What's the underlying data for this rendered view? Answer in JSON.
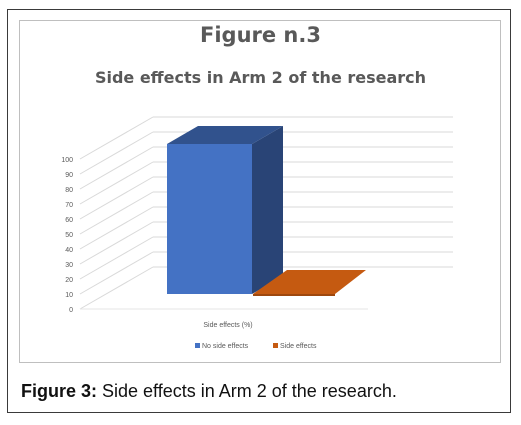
{
  "chart_data": {
    "type": "bar",
    "title": "Figure n.3",
    "subtitle": "Side effects in Arm 2 of the research",
    "categories": [
      "Side effects (%)"
    ],
    "series": [
      {
        "name": "No side effects",
        "values": [
          100
        ],
        "color": "#4472c4"
      },
      {
        "name": "Side effects",
        "values": [
          0
        ],
        "color": "#c55a11"
      }
    ],
    "xlabel": "Side effects (%)",
    "ylabel": "",
    "ylim": [
      0,
      100
    ],
    "yticks": [
      0,
      10,
      20,
      30,
      40,
      50,
      60,
      70,
      80,
      90,
      100
    ],
    "grid": true,
    "legend": "bottom",
    "style": "3d"
  },
  "caption": {
    "label": "Figure 3:",
    "text": " Side effects in Arm 2 of the research."
  }
}
